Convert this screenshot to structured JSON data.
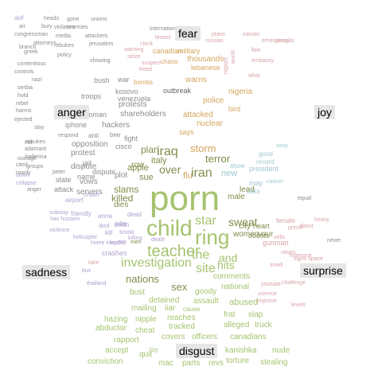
{
  "colors": {
    "anger": "#8c8c8c",
    "fear": "#666666",
    "sadness": "#b19fcf",
    "surprise": "#d9a2a8",
    "disgust": "#a7c27b",
    "joy": "#9fc7cf",
    "green": "#a6c36f",
    "olive": "#7f8d4b",
    "orange": "#d6a45d",
    "mauve": "#b18fae"
  },
  "categories": {
    "anger": "anger",
    "fear": "fear",
    "joy": "joy",
    "sadness": "sadness",
    "surprise": "surprise",
    "disgust": "disgust"
  },
  "words": [
    {
      "text": "porn",
      "color": "green"
    },
    {
      "text": "child",
      "color": "green"
    },
    {
      "text": "teacher",
      "color": "green"
    },
    {
      "text": "ring",
      "color": "green"
    },
    {
      "text": "investigation",
      "color": "green"
    },
    {
      "text": "site",
      "color": "green"
    },
    {
      "text": "the",
      "color": "green"
    },
    {
      "text": "nations",
      "color": "olive"
    },
    {
      "text": "star",
      "color": "green"
    },
    {
      "text": "sweat",
      "color": "olive"
    },
    {
      "text": "and",
      "color": "green"
    },
    {
      "text": "iraq",
      "color": "olive"
    },
    {
      "text": "iran",
      "color": "olive"
    },
    {
      "text": "hits",
      "color": "green"
    },
    {
      "text": "over",
      "color": "olive"
    },
    {
      "text": "killed",
      "color": "olive"
    },
    {
      "text": "slams",
      "color": "olive"
    },
    {
      "text": "sex",
      "color": "olive"
    },
    {
      "text": "storm",
      "color": "orange"
    },
    {
      "text": "terror",
      "color": "olive"
    },
    {
      "text": "plan",
      "color": "olive"
    },
    {
      "text": "italy",
      "color": "olive"
    },
    {
      "text": "apple",
      "color": "olive"
    },
    {
      "text": "sue",
      "color": "olive"
    },
    {
      "text": "row",
      "color": "olive"
    },
    {
      "text": "dies",
      "color": "olive"
    },
    {
      "text": "city",
      "color": "olive"
    },
    {
      "text": "new",
      "color": "joy"
    },
    {
      "text": "police",
      "color": "orange"
    },
    {
      "text": "nuclear",
      "color": "orange"
    },
    {
      "text": "attacked",
      "color": "orange"
    },
    {
      "text": "says",
      "color": "orange"
    },
    {
      "text": "war",
      "color": "anger"
    },
    {
      "text": "protests",
      "color": "anger"
    },
    {
      "text": "shareholders",
      "color": "anger"
    },
    {
      "text": "hackers",
      "color": "anger"
    },
    {
      "text": "opposition",
      "color": "anger"
    },
    {
      "text": "protest",
      "color": "anger"
    },
    {
      "text": "dispute",
      "color": "anger"
    },
    {
      "text": "vows",
      "color": "anger"
    },
    {
      "text": "servers",
      "color": "anger"
    },
    {
      "text": "attack",
      "color": "anger"
    },
    {
      "text": "state",
      "color": "anger"
    },
    {
      "text": "kosovo",
      "color": "anger"
    },
    {
      "text": "venezuela",
      "color": "anger"
    },
    {
      "text": "woman",
      "color": "anger"
    },
    {
      "text": "iphone",
      "color": "anger"
    },
    {
      "text": "cisco",
      "color": "anger"
    },
    {
      "text": "troops",
      "color": "anger"
    },
    {
      "text": "bush",
      "color": "anger"
    },
    {
      "text": "outbreak",
      "color": "fear"
    },
    {
      "text": "warns",
      "color": "orange"
    },
    {
      "text": "thousands",
      "color": "orange"
    },
    {
      "text": "lebanese",
      "color": "orange"
    },
    {
      "text": "military",
      "color": "orange"
    },
    {
      "text": "canadian",
      "color": "orange"
    },
    {
      "text": "bombs",
      "color": "orange"
    },
    {
      "text": "chaos",
      "color": "orange"
    },
    {
      "text": "nigeria",
      "color": "orange"
    },
    {
      "text": "bird",
      "color": "orange"
    },
    {
      "text": "flu",
      "color": "orange"
    },
    {
      "text": "dispute",
      "color": "anger"
    },
    {
      "text": "detained",
      "color": "green"
    },
    {
      "text": "assault",
      "color": "green"
    },
    {
      "text": "abused",
      "color": "green"
    },
    {
      "text": "national",
      "color": "green"
    },
    {
      "text": "comments",
      "color": "green"
    },
    {
      "text": "goody",
      "color": "green"
    },
    {
      "text": "bust",
      "color": "green"
    },
    {
      "text": "mailing",
      "color": "green"
    },
    {
      "text": "liar",
      "color": "green"
    },
    {
      "text": "cause",
      "color": "green"
    },
    {
      "text": "hazing",
      "color": "green"
    },
    {
      "text": "nipple",
      "color": "green"
    },
    {
      "text": "reaches",
      "color": "green"
    },
    {
      "text": "tracked",
      "color": "green"
    },
    {
      "text": "alleged",
      "color": "green"
    },
    {
      "text": "truck",
      "color": "green"
    },
    {
      "text": "frat",
      "color": "green"
    },
    {
      "text": "slap",
      "color": "green"
    },
    {
      "text": "abductor",
      "color": "green"
    },
    {
      "text": "cheat",
      "color": "green"
    },
    {
      "text": "rapport",
      "color": "green"
    },
    {
      "text": "covers",
      "color": "green"
    },
    {
      "text": "officers",
      "color": "green"
    },
    {
      "text": "canadians",
      "color": "green"
    },
    {
      "text": "accept",
      "color": "green"
    },
    {
      "text": "toy",
      "color": "green"
    },
    {
      "text": "conviction",
      "color": "green"
    },
    {
      "text": "quit",
      "color": "green"
    },
    {
      "text": "mac",
      "color": "green"
    },
    {
      "text": "parts",
      "color": "green"
    },
    {
      "text": "revs",
      "color": "green"
    },
    {
      "text": "torture",
      "color": "green"
    },
    {
      "text": "stealing",
      "color": "green"
    },
    {
      "text": "kanishka",
      "color": "green"
    },
    {
      "text": "nude",
      "color": "green"
    },
    {
      "text": "male",
      "color": "olive"
    },
    {
      "text": "women",
      "color": "olive"
    },
    {
      "text": "your",
      "color": "olive"
    },
    {
      "text": "heart",
      "color": "olive"
    },
    {
      "text": "boosts",
      "color": "olive"
    },
    {
      "text": "lead",
      "color": "olive"
    },
    {
      "text": "may",
      "color": "joy"
    },
    {
      "text": "talks",
      "color": "joy"
    },
    {
      "text": "president",
      "color": "joy"
    },
    {
      "text": "record",
      "color": "joy"
    },
    {
      "text": "show",
      "color": "joy"
    },
    {
      "text": "good",
      "color": "joy"
    },
    {
      "text": "cancer",
      "color": "joy"
    },
    {
      "text": "sony",
      "color": "joy"
    },
    {
      "text": "fight",
      "color": "anger"
    },
    {
      "text": "plot",
      "color": "anger"
    },
    {
      "text": "name",
      "color": "anger"
    },
    {
      "text": "jail",
      "color": "anger"
    },
    {
      "text": "bee",
      "color": "anger"
    },
    {
      "text": "anti",
      "color": "anger"
    },
    {
      "text": "crash",
      "color": "sadness"
    },
    {
      "text": "airport",
      "color": "sadness"
    },
    {
      "text": "dead",
      "color": "sadness"
    },
    {
      "text": "kills",
      "color": "sadness"
    },
    {
      "text": "snow",
      "color": "sadness"
    },
    {
      "text": "kill",
      "color": "sadness"
    },
    {
      "text": "smith",
      "color": "sadness"
    },
    {
      "text": "crashes",
      "color": "sadness"
    },
    {
      "text": "friendly",
      "color": "sadness"
    },
    {
      "text": "anna",
      "color": "sadness"
    },
    {
      "text": "died",
      "color": "sadness"
    },
    {
      "text": "doff",
      "color": "sadness"
    },
    {
      "text": "heads",
      "color": "anger"
    },
    {
      "text": "gone",
      "color": "anger"
    },
    {
      "text": "unions",
      "color": "anger"
    },
    {
      "text": "air",
      "color": "anger"
    },
    {
      "text": "bury",
      "color": "anger"
    },
    {
      "text": "enemies",
      "color": "anger"
    },
    {
      "text": "congressman",
      "color": "anger"
    },
    {
      "text": "media",
      "color": "anger"
    },
    {
      "text": "attackers",
      "color": "anger"
    },
    {
      "text": "attorneys",
      "color": "anger"
    },
    {
      "text": "rebukes",
      "color": "anger"
    },
    {
      "text": "greek",
      "color": "anger"
    },
    {
      "text": "jerusalem",
      "color": "anger"
    },
    {
      "text": "contentious",
      "color": "anger"
    },
    {
      "text": "controls",
      "color": "anger"
    },
    {
      "text": "showing",
      "color": "anger"
    },
    {
      "text": "international",
      "color": "anger"
    },
    {
      "text": "breast",
      "color": "surprise"
    },
    {
      "text": "clock",
      "color": "surprise"
    },
    {
      "text": "warning",
      "color": "surprise"
    },
    {
      "text": "seize",
      "color": "surprise"
    },
    {
      "text": "suspect",
      "color": "surprise"
    },
    {
      "text": "freed",
      "color": "surprise"
    },
    {
      "text": "plans",
      "color": "surprise"
    },
    {
      "text": "iranian",
      "color": "surprise"
    },
    {
      "text": "russian",
      "color": "surprise"
    },
    {
      "text": "emergency",
      "color": "surprise"
    },
    {
      "text": "somalia",
      "color": "surprise"
    },
    {
      "text": "flee",
      "color": "surprise"
    },
    {
      "text": "embassy",
      "color": "surprise"
    },
    {
      "text": "what",
      "color": "surprise"
    },
    {
      "text": "world",
      "color": "surprise"
    },
    {
      "text": "report",
      "color": "surprise"
    },
    {
      "text": "heavy",
      "color": "surprise"
    },
    {
      "text": "about",
      "color": "surprise"
    },
    {
      "text": "prince",
      "color": "surprise"
    },
    {
      "text": "sells",
      "color": "surprise"
    },
    {
      "text": "signs space",
      "color": "surprise"
    },
    {
      "text": "raises",
      "color": "surprise"
    },
    {
      "text": "smell",
      "color": "surprise"
    },
    {
      "text": "hormone",
      "color": "surprise"
    },
    {
      "text": "challenge",
      "color": "surprise"
    },
    {
      "text": "youtube",
      "color": "surprise"
    },
    {
      "text": "science",
      "color": "surprise"
    },
    {
      "text": "improve",
      "color": "surprise"
    },
    {
      "text": "levels",
      "color": "surprise"
    },
    {
      "text": "female",
      "color": "surprise"
    },
    {
      "text": "gunman",
      "color": "surprise"
    },
    {
      "text": "take",
      "color": "surprise"
    },
    {
      "text": "men",
      "color": "olive"
    },
    {
      "text": "killing",
      "color": "sadness"
    },
    {
      "text": "death",
      "color": "sadness"
    },
    {
      "text": "thailand",
      "color": "sadness"
    },
    {
      "text": "violence",
      "color": "sadness"
    },
    {
      "text": "helicopter",
      "color": "sadness"
    },
    {
      "text": "has hussein",
      "color": "sadness"
    },
    {
      "text": "subway",
      "color": "sadness"
    },
    {
      "text": "home iraq 000",
      "color": "sadness"
    },
    {
      "text": "leader",
      "color": "sadness"
    },
    {
      "text": "bus",
      "color": "sadness"
    },
    {
      "text": "down",
      "color": "sadness"
    },
    {
      "text": "collapse",
      "color": "sadness"
    },
    {
      "text": "peter",
      "color": "anger"
    },
    {
      "text": "anger",
      "color": "anger"
    },
    {
      "text": "groups",
      "color": "anger"
    },
    {
      "text": "rebukes",
      "color": "anger"
    },
    {
      "text": "adamant",
      "color": "anger"
    },
    {
      "text": "ballerina",
      "color": "anger"
    },
    {
      "text": "outrage",
      "color": "anger"
    },
    {
      "text": "rowdy",
      "color": "anger"
    },
    {
      "text": "cited",
      "color": "anger"
    },
    {
      "text": "slay",
      "color": "anger"
    },
    {
      "text": "respond",
      "color": "anger"
    },
    {
      "text": "riot",
      "color": "anger"
    },
    {
      "text": "ejected",
      "color": "anger"
    },
    {
      "text": "harms",
      "color": "anger"
    },
    {
      "text": "rebel",
      "color": "anger"
    },
    {
      "text": "hold",
      "color": "anger"
    },
    {
      "text": "serbia",
      "color": "anger"
    },
    {
      "text": "nazi",
      "color": "anger"
    },
    {
      "text": "branch",
      "color": "anger"
    },
    {
      "text": "policy",
      "color": "anger"
    },
    {
      "text": "violators",
      "color": "anger"
    },
    {
      "text": "equal",
      "color": "anger"
    },
    {
      "text": "never",
      "color": "anger"
    }
  ]
}
